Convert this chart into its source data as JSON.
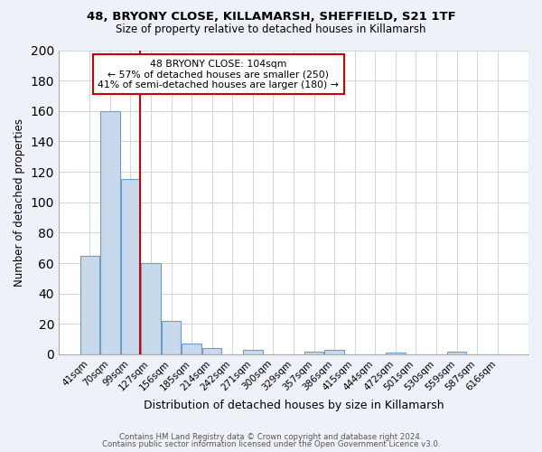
{
  "title1": "48, BRYONY CLOSE, KILLAMARSH, SHEFFIELD, S21 1TF",
  "title2": "Size of property relative to detached houses in Killamarsh",
  "xlabel": "Distribution of detached houses by size in Killamarsh",
  "ylabel": "Number of detached properties",
  "bin_labels": [
    "41sqm",
    "70sqm",
    "99sqm",
    "127sqm",
    "156sqm",
    "185sqm",
    "214sqm",
    "242sqm",
    "271sqm",
    "300sqm",
    "329sqm",
    "357sqm",
    "386sqm",
    "415sqm",
    "444sqm",
    "472sqm",
    "501sqm",
    "530sqm",
    "559sqm",
    "587sqm",
    "616sqm"
  ],
  "bin_values": [
    65,
    160,
    115,
    60,
    22,
    7,
    4,
    0,
    3,
    0,
    0,
    2,
    3,
    0,
    0,
    1,
    0,
    0,
    2,
    0,
    0
  ],
  "bar_color": "#c9d9ec",
  "bar_edge_color": "#6a9ec8",
  "ylim": [
    0,
    200
  ],
  "yticks": [
    0,
    20,
    40,
    60,
    80,
    100,
    120,
    140,
    160,
    180,
    200
  ],
  "vline_x_index": 2,
  "vline_color": "#cc0000",
  "ann_line1": "48 BRYONY CLOSE: 104sqm",
  "ann_line2": "← 57% of detached houses are smaller (250)",
  "ann_line3": "41% of semi-detached houses are larger (180) →",
  "footer1": "Contains HM Land Registry data © Crown copyright and database right 2024.",
  "footer2": "Contains public sector information licensed under the Open Government Licence v3.0.",
  "bg_color": "#eef2f8",
  "plot_bg_color": "#ffffff",
  "grid_color": "#c8d0dc"
}
